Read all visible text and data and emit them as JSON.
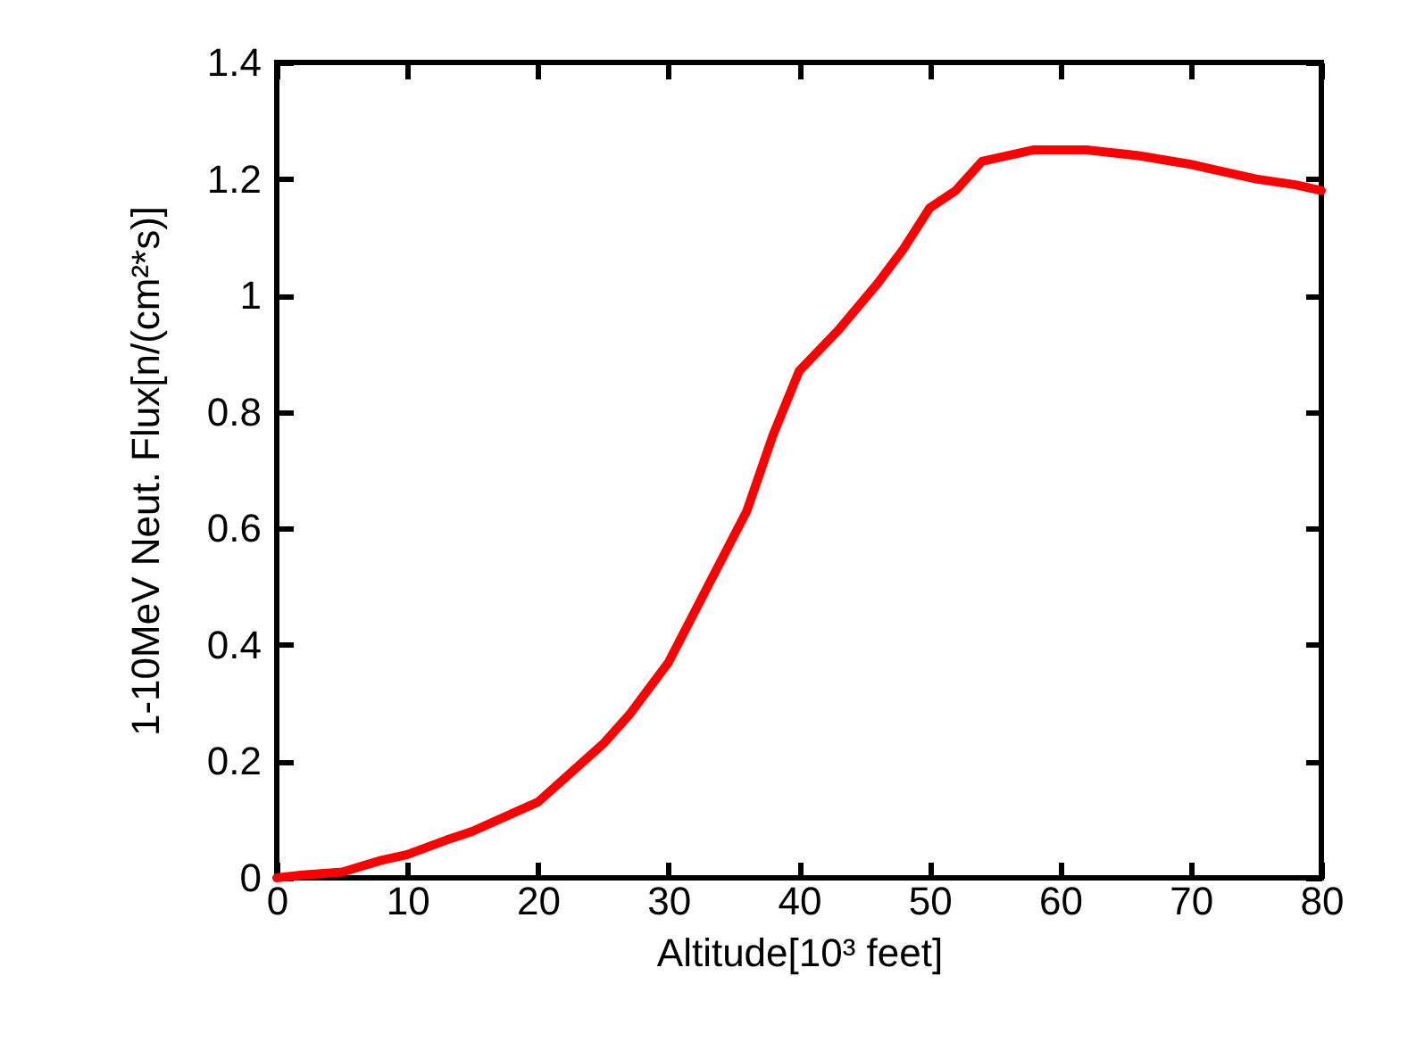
{
  "chart_data": {
    "type": "line",
    "xlabel": "Altitude[10³ feet]",
    "ylabel": "1-10MeV Neut. Flux[n/(cm²*s)]",
    "x": [
      0,
      2,
      5,
      8,
      10,
      13,
      15,
      18,
      20,
      22,
      25,
      27,
      30,
      33,
      36,
      38,
      40,
      43,
      46,
      48,
      50,
      52,
      54,
      56,
      58,
      62,
      66,
      70,
      72,
      75,
      78,
      80
    ],
    "series": [
      {
        "color": "#ff0000",
        "values": [
          0,
          0.005,
          0.01,
          0.03,
          0.04,
          0.065,
          0.08,
          0.11,
          0.13,
          0.17,
          0.23,
          0.28,
          0.37,
          0.5,
          0.63,
          0.76,
          0.87,
          0.94,
          1.02,
          1.08,
          1.15,
          1.18,
          1.23,
          1.24,
          1.25,
          1.25,
          1.24,
          1.225,
          1.215,
          1.2,
          1.19,
          1.18
        ]
      }
    ],
    "xlim": [
      0,
      80
    ],
    "ylim": [
      0,
      1.4
    ],
    "xticks": [
      0,
      10,
      20,
      30,
      40,
      50,
      60,
      70,
      80
    ],
    "yticks": [
      0,
      0.2,
      0.4,
      0.6,
      0.8,
      1,
      1.2,
      1.4
    ],
    "grid": false,
    "marker": "none",
    "line_style": "solid"
  }
}
